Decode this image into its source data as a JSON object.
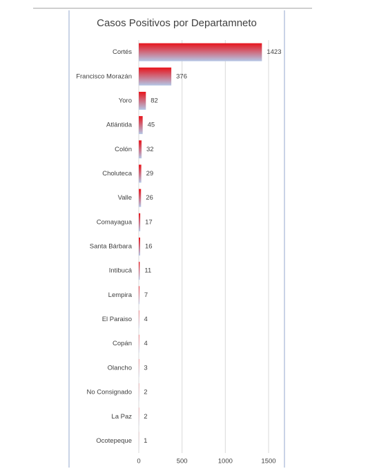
{
  "chart_data": {
    "type": "bar",
    "orientation": "horizontal",
    "title": "Casos Positivos por Departamneto",
    "categories": [
      "Cortés",
      "Francisco Morazán",
      "Yoro",
      "Atlántida",
      "Colón",
      "Choluteca",
      "Valle",
      "Comayagua",
      "Santa Bárbara",
      "Intibucá",
      "Lempira",
      "El Paraiso",
      "Copán",
      "Olancho",
      "No Consignado",
      "La Paz",
      "Ocotepeque"
    ],
    "values": [
      1423,
      376,
      82,
      45,
      32,
      29,
      26,
      17,
      16,
      11,
      7,
      4,
      4,
      3,
      2,
      2,
      1
    ],
    "color": [
      "#e8141b",
      "#b4c7e7"
    ],
    "xlim": [
      0,
      1500
    ],
    "xticks": [
      0,
      500,
      1000,
      1500
    ],
    "grid": true
  }
}
